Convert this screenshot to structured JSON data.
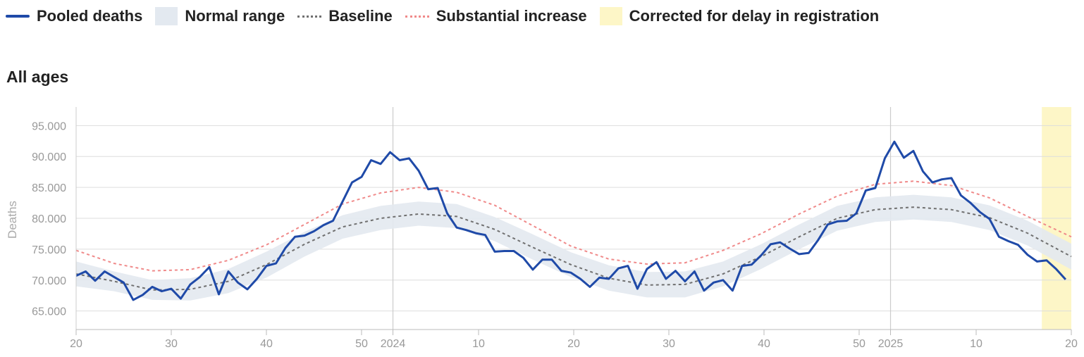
{
  "legend": {
    "pooled": {
      "label": "Pooled deaths",
      "color": "#1f4aa8"
    },
    "normal": {
      "label": "Normal range",
      "color": "#e3e9f0"
    },
    "baseline": {
      "label": "Baseline",
      "color": "#707070"
    },
    "increase": {
      "label": "Substantial increase",
      "color": "#f08a8a"
    },
    "corrected": {
      "label": "Corrected for delay in registration",
      "color": "#fdf6c7"
    }
  },
  "section_title": "All ages",
  "chart_data": {
    "type": "line",
    "title": "All ages",
    "ylabel": "Deaths",
    "xlabel": "",
    "ylim": [
      62000,
      98000
    ],
    "y_ticks": [
      65000,
      70000,
      75000,
      80000,
      85000,
      90000,
      95000
    ],
    "y_tick_labels": [
      "65.000",
      "70.000",
      "75.000",
      "80.000",
      "85.000",
      "90.000",
      "95.000"
    ],
    "x_ticks": [
      {
        "label": "20",
        "week": 20
      },
      {
        "label": "30",
        "week": 30
      },
      {
        "label": "40",
        "week": 40
      },
      {
        "label": "50",
        "week": 50
      },
      {
        "label": "2024",
        "week": 53.3
      },
      {
        "label": "10",
        "week": 62.3
      },
      {
        "label": "20",
        "week": 72.3
      },
      {
        "label": "30",
        "week": 82.3
      },
      {
        "label": "40",
        "week": 92.3
      },
      {
        "label": "50",
        "week": 102.3
      },
      {
        "label": "2025",
        "week": 105.6
      },
      {
        "label": "10",
        "week": 114.6
      },
      {
        "label": "20",
        "week": 124.6
      }
    ],
    "x_year_lines": [
      53.3,
      105.6
    ],
    "x_range": [
      20,
      124.6
    ],
    "corrected_range": [
      121.5,
      124.6
    ],
    "grid": true,
    "baseline": {
      "x": [
        20,
        24,
        28,
        32,
        36,
        40,
        44,
        48,
        52,
        56,
        60,
        64,
        68,
        72,
        76,
        80,
        84,
        88,
        92,
        96,
        100,
        104,
        108,
        112,
        116,
        120,
        124.6
      ],
      "y": [
        71000,
        69800,
        68400,
        68500,
        69800,
        72500,
        75800,
        78600,
        80000,
        80700,
        80300,
        78200,
        75300,
        72500,
        70300,
        69200,
        69300,
        71000,
        73800,
        77000,
        80000,
        81400,
        81800,
        81400,
        80100,
        77600,
        73800
      ]
    },
    "normal_range": {
      "x": [
        20,
        24,
        28,
        32,
        36,
        40,
        44,
        48,
        52,
        56,
        60,
        64,
        68,
        72,
        76,
        80,
        84,
        88,
        92,
        96,
        100,
        104,
        108,
        112,
        116,
        120,
        124.6
      ],
      "upper": [
        73000,
        71400,
        70000,
        70300,
        71800,
        74600,
        77800,
        80500,
        82000,
        82700,
        82300,
        80200,
        77400,
        74500,
        72400,
        71300,
        71400,
        73000,
        75800,
        79000,
        82000,
        83400,
        83800,
        83400,
        82100,
        79600,
        75900
      ],
      "lower": [
        69000,
        68200,
        66800,
        66700,
        67900,
        70400,
        73800,
        76700,
        78100,
        78800,
        78400,
        76300,
        73300,
        70500,
        68300,
        67200,
        67200,
        69000,
        71800,
        75000,
        78000,
        79400,
        79800,
        79400,
        78100,
        75600,
        71700
      ]
    },
    "substantial_increase": {
      "x": [
        20,
        24,
        28,
        32,
        36,
        40,
        44,
        48,
        52,
        56,
        60,
        64,
        68,
        72,
        76,
        80,
        84,
        88,
        92,
        96,
        100,
        104,
        108,
        112,
        116,
        120,
        124.6
      ],
      "y": [
        74800,
        72700,
        71500,
        71700,
        73200,
        75700,
        79000,
        82300,
        84100,
        85000,
        84200,
        82100,
        78800,
        75500,
        73400,
        72600,
        72800,
        74800,
        77500,
        80700,
        83600,
        85500,
        86000,
        85300,
        83300,
        80300,
        77000
      ]
    },
    "series": [
      {
        "name": "Pooled deaths",
        "x": [
          20,
          21,
          22,
          23,
          24,
          25,
          26,
          27,
          28,
          29,
          30,
          31,
          32,
          33,
          34,
          35,
          36,
          37,
          38,
          39,
          40,
          41,
          42,
          43,
          44,
          45,
          46,
          47,
          48,
          49,
          50,
          51,
          52,
          53,
          54,
          55,
          56,
          57,
          58,
          59,
          60,
          61,
          62,
          63,
          64,
          65,
          66,
          67,
          68,
          69,
          70,
          71,
          72,
          73,
          74,
          75,
          76,
          77,
          78,
          79,
          80,
          81,
          82,
          83,
          84,
          85,
          86,
          87,
          88,
          89,
          90,
          91,
          92,
          93,
          94,
          95,
          96,
          97,
          98,
          99,
          100,
          101,
          102,
          103,
          104,
          105,
          106,
          107,
          108,
          109,
          110,
          111,
          112,
          113,
          114,
          115,
          116,
          117,
          118,
          119,
          120,
          121,
          122,
          123,
          124
        ],
        "y": [
          70700,
          71400,
          69900,
          71400,
          70500,
          69600,
          66800,
          67600,
          68900,
          68200,
          68600,
          67000,
          69300,
          70500,
          72100,
          67700,
          71400,
          69600,
          68500,
          70200,
          72300,
          72700,
          75200,
          77000,
          77200,
          77900,
          78900,
          79600,
          82700,
          85800,
          86700,
          89400,
          88800,
          90700,
          89400,
          89700,
          87700,
          84700,
          84900,
          80800,
          78500,
          78100,
          77600,
          77300,
          74600,
          74700,
          74700,
          73600,
          71700,
          73300,
          73300,
          71500,
          71200,
          70200,
          68900,
          70400,
          70200,
          71900,
          72300,
          68600,
          71800,
          72900,
          70200,
          71500,
          69800,
          71400,
          68300,
          69600,
          70000,
          68300,
          72300,
          72500,
          74000,
          75800,
          76100,
          75100,
          74200,
          74400,
          76500,
          79000,
          79500,
          79600,
          80800,
          84500,
          84900,
          89700,
          92400,
          89800,
          90900,
          87600,
          85800,
          86300,
          86500,
          83700,
          82500,
          81000,
          79900,
          77000,
          76300,
          75700,
          74100,
          73000,
          73200,
          71800,
          70100
        ],
        "color": "#1f4aa8"
      }
    ]
  }
}
